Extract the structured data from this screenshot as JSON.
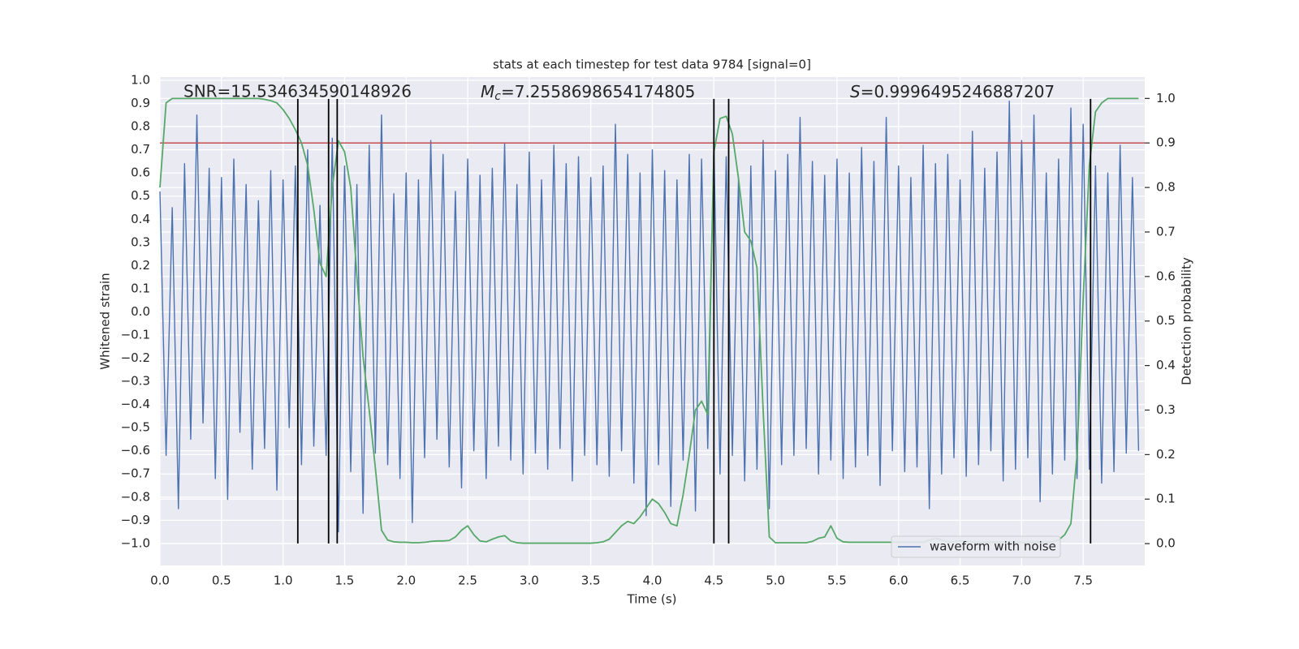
{
  "chart_data": {
    "type": "line",
    "title": "stats at each timestep for test data 9784 [signal=0]",
    "xlabel": "Time (s)",
    "ylabel": "Whitened strain",
    "y2label": "Detection probability",
    "background": "#eaeaf2",
    "grid": true,
    "legend": "lower right",
    "xlim": [
      0,
      8
    ],
    "ylim": [
      -1.095,
      1.014
    ],
    "y2lim": [
      -0.049,
      1.048
    ],
    "xticks": [
      {
        "value": 0,
        "label": "0.0"
      },
      0.5,
      {
        "value": 1,
        "label": "1.0"
      },
      1.5,
      {
        "value": 2,
        "label": "2.0"
      },
      2.5,
      {
        "value": 3,
        "label": "3.0"
      },
      3.5,
      {
        "value": 4,
        "label": "4.0"
      },
      4.5,
      {
        "value": 5,
        "label": "5.0"
      },
      5.5,
      {
        "value": 6,
        "label": "6.0"
      },
      6.5,
      {
        "value": 7,
        "label": "7.0"
      },
      7.5
    ],
    "yticks": [
      {
        "value": -1,
        "label": "−1.0"
      },
      {
        "value": -0.9,
        "label": "−0.9"
      },
      {
        "value": -0.8,
        "label": "−0.8"
      },
      {
        "value": -0.7,
        "label": "−0.7"
      },
      {
        "value": -0.6,
        "label": "−0.6"
      },
      {
        "value": -0.5,
        "label": "−0.5"
      },
      {
        "value": -0.4,
        "label": "−0.4"
      },
      {
        "value": -0.3,
        "label": "−0.3"
      },
      {
        "value": -0.2,
        "label": "−0.2"
      },
      {
        "value": -0.1,
        "label": "−0.1"
      },
      {
        "value": 0,
        "label": "0.0"
      },
      0.1,
      0.2,
      0.3,
      0.4,
      0.5,
      0.6,
      0.7,
      0.8,
      0.9,
      {
        "value": 1,
        "label": "1.0"
      }
    ],
    "y2ticks": [
      {
        "value": 0,
        "label": "0.0"
      },
      0.1,
      0.2,
      0.3,
      0.4,
      0.5,
      0.6,
      0.7,
      0.8,
      0.9,
      {
        "value": 1,
        "label": "1.0"
      }
    ],
    "annotations": [
      {
        "text": "SNR=15.534634590148926"
      },
      {
        "symbol": "M",
        "subscript": "c",
        "text": "=7.2558698654174805"
      },
      {
        "symbol": "S",
        "text": "=0.9996495246887207"
      }
    ],
    "threshold": {
      "value": 0.9,
      "axis": "y2",
      "color": "#c44e52"
    },
    "vlines": [
      1.12,
      1.37,
      1.44,
      4.5,
      4.62,
      7.56
    ],
    "vline_range": [
      -1.0,
      0.92
    ],
    "vline_color": "#000000",
    "x": [
      0,
      0.05,
      0.1,
      0.15,
      0.2,
      0.25,
      0.3,
      0.35,
      0.4,
      0.45,
      0.5,
      0.55,
      0.6,
      0.65,
      0.7,
      0.75,
      0.8,
      0.85,
      0.9,
      0.95,
      1,
      1.05,
      1.1,
      1.15,
      1.2,
      1.25,
      1.3,
      1.35,
      1.4,
      1.45,
      1.5,
      1.55,
      1.6,
      1.65,
      1.7,
      1.75,
      1.8,
      1.85,
      1.9,
      1.95,
      2,
      2.05,
      2.1,
      2.15,
      2.2,
      2.25,
      2.3,
      2.35,
      2.4,
      2.45,
      2.5,
      2.55,
      2.6,
      2.65,
      2.7,
      2.75,
      2.8,
      2.85,
      2.9,
      2.95,
      3,
      3.05,
      3.1,
      3.15,
      3.2,
      3.25,
      3.3,
      3.35,
      3.4,
      3.45,
      3.5,
      3.55,
      3.6,
      3.65,
      3.7,
      3.75,
      3.8,
      3.85,
      3.9,
      3.95,
      4,
      4.05,
      4.1,
      4.15,
      4.2,
      4.25,
      4.3,
      4.35,
      4.4,
      4.45,
      4.5,
      4.55,
      4.6,
      4.65,
      4.7,
      4.75,
      4.8,
      4.85,
      4.9,
      4.95,
      5,
      5.05,
      5.1,
      5.15,
      5.2,
      5.25,
      5.3,
      5.35,
      5.4,
      5.45,
      5.5,
      5.55,
      5.6,
      5.65,
      5.7,
      5.75,
      5.8,
      5.85,
      5.9,
      5.95,
      6,
      6.05,
      6.1,
      6.15,
      6.2,
      6.25,
      6.3,
      6.35,
      6.4,
      6.45,
      6.5,
      6.55,
      6.6,
      6.65,
      6.7,
      6.75,
      6.8,
      6.85,
      6.9,
      6.95,
      7,
      7.05,
      7.1,
      7.15,
      7.2,
      7.25,
      7.3,
      7.35,
      7.4,
      7.45,
      7.5,
      7.55,
      7.6,
      7.65,
      7.7,
      7.75,
      7.8,
      7.85,
      7.9,
      7.95
    ],
    "series": [
      {
        "name": "waveform with noise",
        "color": "#4c72b0",
        "axis": "y",
        "values": [
          0.52,
          -0.62,
          0.45,
          -0.85,
          0.64,
          -0.55,
          0.85,
          -0.48,
          0.62,
          -0.72,
          0.58,
          -0.81,
          0.66,
          -0.52,
          0.55,
          -0.68,
          0.48,
          -0.59,
          0.61,
          -0.77,
          0.57,
          -0.5,
          0.63,
          -0.66,
          0.7,
          -0.58,
          0.46,
          -0.62,
          0.75,
          -0.95,
          0.63,
          -0.69,
          0.55,
          -0.87,
          0.72,
          -0.61,
          0.85,
          -0.66,
          0.51,
          -0.72,
          0.6,
          -0.91,
          0.57,
          -0.63,
          0.74,
          -0.55,
          0.68,
          -0.67,
          0.52,
          -0.76,
          0.66,
          -0.6,
          0.59,
          -0.72,
          0.62,
          -0.58,
          0.73,
          -0.64,
          0.55,
          -0.7,
          0.69,
          -0.61,
          0.57,
          -0.68,
          0.72,
          -0.59,
          0.64,
          -0.73,
          0.67,
          -0.62,
          0.58,
          -0.66,
          0.63,
          -0.71,
          0.81,
          -0.6,
          0.68,
          -0.74,
          0.6,
          -0.88,
          0.7,
          -0.66,
          0.61,
          -0.84,
          0.57,
          -0.64,
          0.68,
          -0.86,
          0.66,
          -0.59,
          0.72,
          -0.7,
          0.67,
          -0.62,
          0.58,
          -0.73,
          0.63,
          -0.68,
          0.74,
          -0.85,
          0.61,
          -0.66,
          0.68,
          -0.62,
          0.84,
          -0.59,
          0.65,
          -0.7,
          0.59,
          -0.64,
          0.66,
          -0.72,
          0.6,
          -0.67,
          0.71,
          -0.62,
          0.65,
          -0.75,
          0.84,
          -0.6,
          0.63,
          -0.69,
          0.58,
          -0.67,
          0.72,
          -0.85,
          0.64,
          -0.7,
          0.68,
          -0.63,
          0.57,
          -0.71,
          0.78,
          -0.66,
          0.62,
          -0.6,
          0.69,
          -0.73,
          0.91,
          -0.68,
          0.74,
          -0.63,
          0.85,
          -0.82,
          0.6,
          -0.7,
          0.66,
          -0.64,
          0.88,
          -0.72,
          0.81,
          -0.68,
          0.63,
          -0.74,
          0.6,
          -0.69,
          0.72,
          -0.61,
          0.58,
          -0.6
        ]
      },
      {
        "color": "#55a868",
        "axis": "y2",
        "values": [
          0.8,
          0.99,
          1.0,
          1.0,
          1.0,
          1.0,
          1.0,
          1.0,
          1.0,
          1.0,
          1.0,
          1.0,
          1.0,
          1.0,
          1.0,
          1.0,
          1.0,
          0.998,
          0.995,
          0.99,
          0.975,
          0.955,
          0.93,
          0.9,
          0.85,
          0.75,
          0.63,
          0.6,
          0.8,
          0.905,
          0.88,
          0.8,
          0.6,
          0.42,
          0.3,
          0.17,
          0.03,
          0.008,
          0.004,
          0.003,
          0.003,
          0.002,
          0.002,
          0.003,
          0.005,
          0.006,
          0.006,
          0.007,
          0.015,
          0.03,
          0.04,
          0.02,
          0.006,
          0.004,
          0.01,
          0.015,
          0.018,
          0.006,
          0.002,
          0.001,
          0.001,
          0.001,
          0.001,
          0.001,
          0.001,
          0.001,
          0.001,
          0.001,
          0.001,
          0.001,
          0.001,
          0.002,
          0.004,
          0.01,
          0.025,
          0.04,
          0.05,
          0.045,
          0.06,
          0.08,
          0.1,
          0.09,
          0.07,
          0.045,
          0.04,
          0.11,
          0.2,
          0.3,
          0.32,
          0.29,
          0.88,
          0.955,
          0.96,
          0.92,
          0.82,
          0.7,
          0.68,
          0.62,
          0.3,
          0.015,
          0.002,
          0.002,
          0.002,
          0.002,
          0.002,
          0.002,
          0.005,
          0.012,
          0.015,
          0.04,
          0.012,
          0.004,
          0.003,
          0.003,
          0.003,
          0.003,
          0.003,
          0.003,
          0.003,
          0.003,
          0.003,
          0.003,
          0.003,
          0.003,
          0.003,
          0.008,
          0.012,
          0.008,
          0.004,
          0.004,
          0.006,
          0.005,
          0.004,
          0.003,
          0.003,
          0.003,
          0.003,
          0.003,
          0.003,
          0.003,
          0.003,
          0.003,
          0.003,
          0.003,
          0.003,
          0.004,
          0.008,
          0.02,
          0.045,
          0.2,
          0.55,
          0.85,
          0.97,
          0.99,
          1.0,
          1.0,
          1.0,
          1.0,
          1.0,
          1.0
        ]
      }
    ]
  }
}
